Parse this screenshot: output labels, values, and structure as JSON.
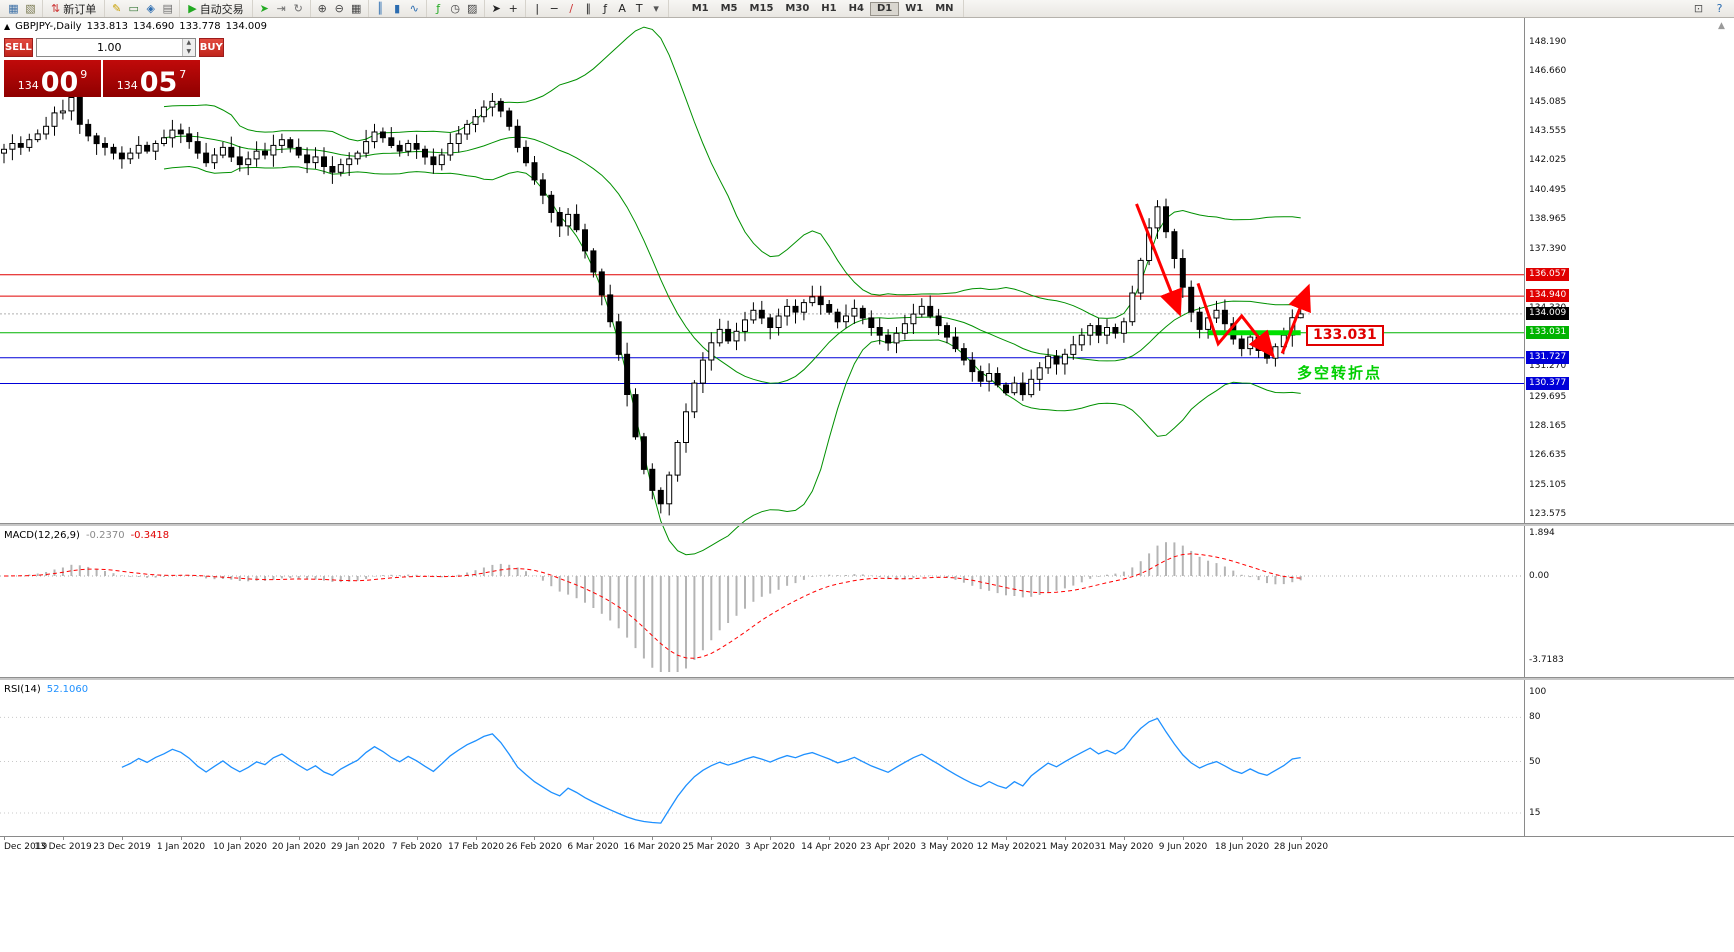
{
  "icons": {
    "scroll_up_glyph": "▲"
  },
  "toolbar": {
    "groups": [
      {
        "name": "windows",
        "items": [
          {
            "name": "new-chart-icon",
            "glyph": "▦",
            "color": "#3a6ea5"
          },
          {
            "name": "profiles-icon",
            "glyph": "▧",
            "color": "#7a7a52"
          }
        ]
      },
      {
        "name": "order",
        "items": [
          {
            "name": "new-order-button",
            "glyph": "⇅",
            "color": "#cc3333",
            "label": "新订单"
          }
        ]
      },
      {
        "name": "tools",
        "items": [
          {
            "name": "metaeditor-icon",
            "glyph": "✎",
            "color": "#c8a000"
          },
          {
            "name": "data-window-icon",
            "glyph": "▭",
            "color": "#3a7a3a"
          },
          {
            "name": "navigator-icon",
            "glyph": "◈",
            "color": "#2b6cb0"
          },
          {
            "name": "terminal-icon",
            "glyph": "▤",
            "color": "#707070"
          }
        ]
      },
      {
        "name": "autotrade",
        "items": [
          {
            "name": "autotrading-button",
            "glyph": "▶",
            "color": "#22aa22",
            "label": "自动交易"
          }
        ]
      },
      {
        "name": "scroll",
        "items": [
          {
            "name": "auto-scroll-icon",
            "glyph": "➤",
            "color": "#22aa22"
          },
          {
            "name": "chart-shift-icon",
            "glyph": "⇥",
            "color": "#707070"
          },
          {
            "name": "refresh-icon",
            "glyph": "↻",
            "color": "#707070"
          }
        ]
      },
      {
        "name": "zoom",
        "items": [
          {
            "name": "zoom-in-icon",
            "glyph": "⊕",
            "color": "#444444"
          },
          {
            "name": "zoom-out-icon",
            "glyph": "⊖",
            "color": "#444444"
          },
          {
            "name": "tile-windows-icon",
            "glyph": "▦",
            "color": "#444444"
          }
        ]
      },
      {
        "name": "chart-type",
        "items": [
          {
            "name": "bar-chart-icon",
            "glyph": "║",
            "color": "#2b6cb0"
          },
          {
            "name": "candlestick-icon",
            "glyph": "▮",
            "color": "#2b6cb0"
          },
          {
            "name": "line-chart-icon",
            "glyph": "∿",
            "color": "#2b6cb0"
          }
        ]
      },
      {
        "name": "indicators",
        "items": [
          {
            "name": "indicators-icon",
            "glyph": "ƒ",
            "color": "#22aa22"
          },
          {
            "name": "periods-icon",
            "glyph": "◷",
            "color": "#444444"
          },
          {
            "name": "templates-icon",
            "glyph": "▨",
            "color": "#444444"
          }
        ]
      },
      {
        "name": "cursor",
        "items": [
          {
            "name": "cursor-icon",
            "glyph": "➤",
            "color": "#222222"
          },
          {
            "name": "crosshair-icon",
            "glyph": "+",
            "color": "#222222"
          }
        ]
      },
      {
        "name": "objects",
        "items": [
          {
            "name": "vertical-line-icon",
            "glyph": "|",
            "color": "#222222"
          },
          {
            "name": "horizontal-line-icon",
            "glyph": "−",
            "color": "#222222"
          },
          {
            "name": "trendline-icon",
            "glyph": "∕",
            "color": "#cc3333"
          },
          {
            "name": "channel-icon",
            "glyph": "∥",
            "color": "#222222"
          },
          {
            "name": "fibonacci-icon",
            "glyph": "ƒ",
            "color": "#222222"
          },
          {
            "name": "text-icon",
            "glyph": "A",
            "color": "#222222"
          },
          {
            "name": "arrow-tool-icon",
            "glyph": "T",
            "color": "#222222"
          },
          {
            "name": "shapes-dropdown-icon",
            "glyph": "▾",
            "color": "#555555"
          }
        ]
      }
    ],
    "timeframes": [
      "M1",
      "M5",
      "M15",
      "M30",
      "H1",
      "H4",
      "D1",
      "W1",
      "MN"
    ],
    "active_timeframe": "D1",
    "right_items": [
      {
        "name": "print-icon",
        "glyph": "⊡",
        "color": "#555555"
      },
      {
        "name": "help-icon",
        "glyph": "?",
        "color": "#2b6cb0"
      }
    ]
  },
  "chart_header": {
    "collapse_glyph": "▲",
    "symbol_title": "GBPJPY-,Daily",
    "open": "133.813",
    "high": "134.690",
    "low": "133.778",
    "close": "134.009"
  },
  "one_click": {
    "sell_label": "SELL",
    "buy_label": "BUY",
    "volume": "1.00",
    "spin_up_glyph": "▲",
    "spin_down_glyph": "▼",
    "sell_price_int": "134",
    "sell_price_pips": "00",
    "sell_price_point": "9",
    "buy_price_int": "134",
    "buy_price_pips": "05",
    "buy_price_point": "7"
  },
  "indicators": {
    "macd": {
      "label": "MACD(12,26,9)",
      "value_main": "-0.2370",
      "value_signal": "-0.3418",
      "scale_labels": [
        "1.894",
        "0.00",
        "-3.7183"
      ],
      "scale_values": [
        1.894,
        0,
        -3.7183
      ]
    },
    "rsi": {
      "label": "RSI(14)",
      "value": "52.1060",
      "level_labels": [
        "100",
        "80",
        "50",
        "15"
      ],
      "level_values": [
        100,
        80,
        50,
        15
      ]
    }
  },
  "chart_data": {
    "type": "candlestick",
    "symbol": "GBPJPY-",
    "timeframe": "Daily",
    "title": "GBPJPY-,Daily",
    "ylim": [
      123.1,
      149.45
    ],
    "grid": false,
    "first_open": 142.4,
    "closes": [
      142.6,
      142.9,
      142.7,
      143.1,
      143.4,
      143.8,
      144.5,
      144.6,
      145.3,
      143.9,
      143.3,
      142.9,
      142.7,
      142.4,
      142.1,
      142.4,
      142.8,
      142.5,
      142.9,
      143.2,
      143.6,
      143.4,
      143.0,
      142.4,
      141.9,
      142.3,
      142.7,
      142.2,
      141.8,
      142.1,
      142.5,
      142.3,
      142.8,
      143.1,
      142.7,
      142.3,
      141.9,
      142.2,
      141.7,
      141.4,
      141.8,
      142.1,
      142.4,
      143.0,
      143.5,
      143.2,
      142.8,
      142.5,
      142.9,
      142.6,
      142.2,
      141.8,
      142.3,
      142.9,
      143.4,
      143.9,
      144.3,
      144.8,
      145.1,
      144.6,
      143.8,
      142.7,
      141.9,
      141.0,
      140.2,
      139.3,
      138.6,
      139.2,
      138.4,
      137.3,
      136.2,
      135.0,
      133.6,
      131.9,
      129.8,
      127.6,
      125.9,
      124.8,
      124.1,
      125.6,
      127.3,
      128.9,
      130.4,
      131.6,
      132.5,
      133.2,
      132.6,
      133.1,
      133.7,
      134.2,
      133.8,
      133.3,
      133.9,
      134.4,
      134.1,
      134.6,
      134.9,
      134.5,
      134.1,
      133.6,
      133.9,
      134.3,
      133.8,
      133.3,
      132.9,
      132.5,
      133.0,
      133.5,
      134.0,
      134.4,
      133.9,
      133.4,
      132.8,
      132.2,
      131.6,
      131.0,
      130.5,
      130.9,
      130.3,
      129.9,
      130.4,
      129.8,
      130.6,
      131.2,
      131.8,
      131.4,
      131.9,
      132.4,
      132.9,
      133.4,
      132.9,
      133.3,
      133.0,
      133.6,
      135.1,
      136.8,
      138.5,
      139.6,
      138.3,
      136.9,
      135.4,
      134.1,
      133.2,
      133.8,
      134.2,
      133.5,
      132.7,
      132.2,
      132.8,
      132.1,
      131.7,
      132.3,
      132.9,
      133.81,
      134.009
    ],
    "wick_overrides": {
      "8": {
        "h": 145.95
      },
      "78": {
        "l": 123.6
      },
      "137": {
        "h": 139.95
      }
    },
    "last_ohlc": [
      133.813,
      134.69,
      133.778,
      134.009
    ],
    "bollinger": {
      "period": 20,
      "deviation": 2
    },
    "current_price": "134.009",
    "current_price_value": 134.009,
    "lines": [
      {
        "price": "136.057",
        "value": 136.057,
        "color": "#e00000"
      },
      {
        "price": "134.940",
        "value": 134.94,
        "color": "#e00000"
      },
      {
        "price": "133.031",
        "value": 133.031,
        "color": "#00b300"
      },
      {
        "price": "131.727",
        "value": 131.727,
        "color": "#0000d8"
      },
      {
        "price": "130.377",
        "value": 130.377,
        "color": "#0000d8"
      }
    ],
    "y_ticks": [
      "148.190",
      "146.660",
      "145.085",
      "143.555",
      "142.025",
      "140.495",
      "138.965",
      "137.390",
      "135.860",
      "134.330",
      "132.800",
      "131.270",
      "129.695",
      "128.165",
      "126.635",
      "125.105",
      "123.575"
    ],
    "x_labels": [
      "Dec 2019",
      "13 Dec 2019",
      "23 Dec 2019",
      "1 Jan 2020",
      "10 Jan 2020",
      "20 Jan 2020",
      "29 Jan 2020",
      "7 Feb 2020",
      "17 Feb 2020",
      "26 Feb 2020",
      "6 Mar 2020",
      "16 Mar 2020",
      "25 Mar 2020",
      "3 Apr 2020",
      "14 Apr 2020",
      "23 Apr 2020",
      "3 May 2020",
      "12 May 2020",
      "21 May 2020",
      "31 May 2020",
      "9 Jun 2020",
      "18 Jun 2020",
      "28 Jun 2020"
    ],
    "label_every_bars": 7,
    "colors": {
      "bands": "#009000",
      "up_candle": "#ffffff",
      "down_candle": "#000000",
      "macd_hist": "#b4b4b4",
      "macd_signal": "#ff0000",
      "rsi_line": "#1e90ff",
      "bid_line": "#b0b0b0",
      "arrow": "#ff0000",
      "segment": "#00e000"
    },
    "annotations": {
      "callout_text": "133.031",
      "note_text": "多空转折点",
      "level_segment": {
        "price": 133.031,
        "from_bar": 143,
        "to_bar": 154
      },
      "arrows": [
        {
          "name": "downtrend-arrow",
          "points": [
            [
              134.5,
              139.75
            ],
            [
              139.5,
              134.15
            ]
          ]
        },
        {
          "name": "zigzag-arrow",
          "points": [
            [
              141.8,
              135.6
            ],
            [
              144.2,
              132.45
            ],
            [
              147.0,
              133.9
            ],
            [
              150.5,
              131.95
            ]
          ]
        },
        {
          "name": "breakout-arrow",
          "points": [
            [
              151.8,
              131.95
            ],
            [
              154.8,
              135.3
            ]
          ]
        }
      ]
    }
  }
}
